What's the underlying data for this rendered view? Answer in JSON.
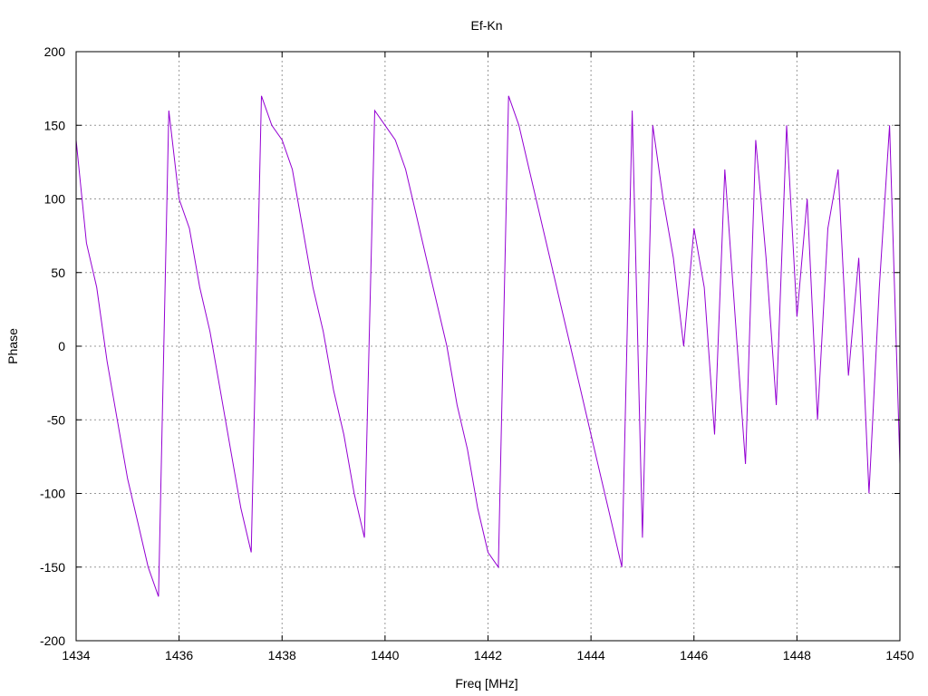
{
  "chart_data": {
    "type": "line",
    "title": "Ef-Kn",
    "xlabel": "Freq [MHz]",
    "ylabel": "Phase",
    "xlim": [
      1434,
      1450
    ],
    "ylim": [
      -200,
      200
    ],
    "xticks": [
      1434,
      1436,
      1438,
      1440,
      1442,
      1444,
      1446,
      1448,
      1450
    ],
    "yticks": [
      -200,
      -150,
      -100,
      -50,
      0,
      50,
      100,
      150,
      200
    ],
    "grid": true,
    "line_color": "#9400d3",
    "series": [
      {
        "x": [
          1434.0,
          1434.2,
          1434.4,
          1434.6,
          1434.8,
          1435.0,
          1435.2,
          1435.4,
          1435.6,
          1435.8,
          1436.0,
          1436.2,
          1436.4,
          1436.6,
          1436.8,
          1437.0,
          1437.2,
          1437.4,
          1437.6,
          1437.8,
          1438.0,
          1438.2,
          1438.4,
          1438.6,
          1438.8,
          1439.0,
          1439.2,
          1439.4,
          1439.6,
          1439.8,
          1440.0,
          1440.2,
          1440.4,
          1440.6,
          1440.8,
          1441.0,
          1441.2,
          1441.4,
          1441.6,
          1441.8,
          1442.0,
          1442.2,
          1442.4,
          1442.6,
          1442.8,
          1443.0,
          1443.2,
          1443.4,
          1443.6,
          1443.8,
          1444.0,
          1444.2,
          1444.4,
          1444.6,
          1444.8,
          1445.0,
          1445.2,
          1445.4,
          1445.6,
          1445.8,
          1446.0,
          1446.2,
          1446.4,
          1446.6,
          1446.8,
          1447.0,
          1447.2,
          1447.4,
          1447.6,
          1447.8,
          1448.0,
          1448.2,
          1448.4,
          1448.6,
          1448.8,
          1449.0,
          1449.2,
          1449.4,
          1449.6,
          1449.8,
          1450.0
        ],
        "y": [
          140,
          70,
          40,
          -10,
          -50,
          -90,
          -120,
          -150,
          -170,
          160,
          100,
          80,
          40,
          10,
          -30,
          -70,
          -110,
          -140,
          170,
          150,
          140,
          120,
          80,
          40,
          10,
          -30,
          -60,
          -100,
          -130,
          160,
          150,
          140,
          120,
          90,
          60,
          30,
          0,
          -40,
          -70,
          -110,
          -140,
          -150,
          170,
          150,
          120,
          90,
          60,
          30,
          0,
          -30,
          -60,
          -90,
          -120,
          -150,
          160,
          -130,
          150,
          100,
          60,
          0,
          80,
          40,
          -60,
          120,
          20,
          -80,
          140,
          60,
          -40,
          150,
          20,
          100,
          -50,
          80,
          120,
          -20,
          60,
          -100,
          40,
          150,
          -80
        ]
      }
    ]
  }
}
